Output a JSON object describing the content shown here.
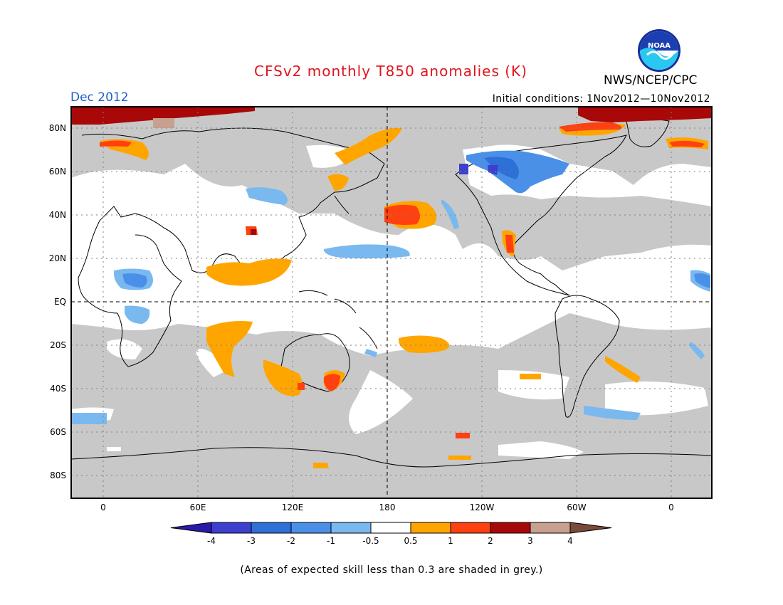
{
  "title": "CFSv2 monthly T850 anomalies (K)",
  "title_color": "#e0141e",
  "valid_month": "Dec 2012",
  "valid_color": "#2060d0",
  "initial_conditions": "Initial conditions: 1Nov2012—10Nov2012",
  "organization": "NWS/NCEP/CPC",
  "logo_icon": "noaa-logo-icon",
  "map": {
    "lat_labels": [
      "80N",
      "60N",
      "40N",
      "20N",
      "EQ",
      "20S",
      "40S",
      "60S",
      "80S"
    ],
    "lon_labels": [
      "0",
      "60E",
      "120E",
      "180",
      "120W",
      "60W",
      "0"
    ],
    "grey_color": "#c8c8c8",
    "ocean_white": "#ffffff"
  },
  "colorbar": {
    "ticks": [
      "-4",
      "-3",
      "-2",
      "-1",
      "-0.5",
      "0.5",
      "1",
      "2",
      "3",
      "4"
    ],
    "colors": [
      "#2a1aa8",
      "#3d3fcf",
      "#2f6fd8",
      "#4a90e8",
      "#7ab8f0",
      "#ffffff",
      "#ffa500",
      "#ff4010",
      "#a80808",
      "#c8a090",
      "#7a4a3a"
    ]
  },
  "footnote": "(Areas of expected skill less than 0.3 are shaded in grey.)"
}
